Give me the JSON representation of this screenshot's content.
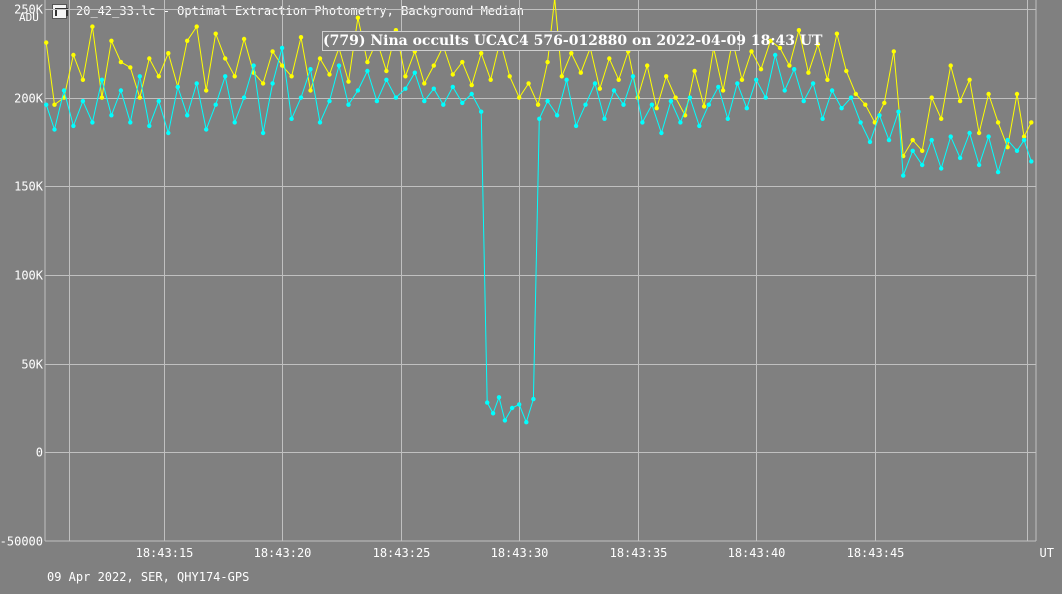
{
  "window": {
    "icon": "lc-file-icon",
    "title": "20_42_33.lc - Optimal Extraction Photometry, Background Median"
  },
  "footer": "09 Apr 2022, SER, QHY174-GPS",
  "colors": {
    "background": "#808080",
    "grid": "#c0c0c0",
    "series_yellow": "#ffff00",
    "series_cyan": "#00ffff"
  },
  "chart_data": {
    "type": "line",
    "title": "(779) Nina occults UCAC4 576-012880 on 2022-04-09 18:43 UT",
    "ylabel": "ADU",
    "xlabel": "UT",
    "ylim": [
      -50000,
      255000
    ],
    "xlim": [
      10.0,
      51.8
    ],
    "x_unit": "seconds after 18:43:00 UT",
    "grid": true,
    "yticks": [
      {
        "value": 250000,
        "label": "250K"
      },
      {
        "value": 200000,
        "label": "200K"
      },
      {
        "value": 150000,
        "label": "150K"
      },
      {
        "value": 100000,
        "label": "100K"
      },
      {
        "value": 50000,
        "label": "50K"
      },
      {
        "value": 0,
        "label": "0"
      },
      {
        "value": -50000,
        "label": "-50000"
      }
    ],
    "xticks": [
      {
        "value": 11,
        "label": ""
      },
      {
        "value": 15,
        "label": "18:43:15"
      },
      {
        "value": 20,
        "label": "18:43:20"
      },
      {
        "value": 25,
        "label": "18:43:25"
      },
      {
        "value": 30,
        "label": "18:43:30"
      },
      {
        "value": 35,
        "label": "18:43:35"
      },
      {
        "value": 40,
        "label": "18:43:40"
      },
      {
        "value": 45,
        "label": "18:43:45"
      },
      {
        "value": 51.4,
        "label": ""
      }
    ],
    "series": [
      {
        "color": "#ffff00",
        "points": [
          [
            10.05,
            231000
          ],
          [
            10.4,
            196000
          ],
          [
            10.8,
            200000
          ],
          [
            11.2,
            224000
          ],
          [
            11.6,
            210000
          ],
          [
            12.0,
            240000
          ],
          [
            12.4,
            200000
          ],
          [
            12.8,
            232000
          ],
          [
            13.2,
            220000
          ],
          [
            13.6,
            217000
          ],
          [
            14.0,
            200000
          ],
          [
            14.4,
            222000
          ],
          [
            14.8,
            212000
          ],
          [
            15.2,
            225000
          ],
          [
            15.6,
            206000
          ],
          [
            16.0,
            232000
          ],
          [
            16.4,
            240000
          ],
          [
            16.8,
            204000
          ],
          [
            17.2,
            236000
          ],
          [
            17.6,
            222000
          ],
          [
            18.0,
            212000
          ],
          [
            18.4,
            233000
          ],
          [
            18.8,
            214000
          ],
          [
            19.2,
            208000
          ],
          [
            19.6,
            226000
          ],
          [
            20.0,
            218000
          ],
          [
            20.4,
            212000
          ],
          [
            20.8,
            234000
          ],
          [
            21.2,
            204000
          ],
          [
            21.6,
            222000
          ],
          [
            22.0,
            213000
          ],
          [
            22.4,
            228000
          ],
          [
            22.8,
            209000
          ],
          [
            23.2,
            245000
          ],
          [
            23.6,
            220000
          ],
          [
            24.0,
            232000
          ],
          [
            24.4,
            215000
          ],
          [
            24.8,
            238000
          ],
          [
            25.2,
            212000
          ],
          [
            25.6,
            226000
          ],
          [
            26.0,
            208000
          ],
          [
            26.4,
            218000
          ],
          [
            26.8,
            229000
          ],
          [
            27.2,
            213000
          ],
          [
            27.6,
            220000
          ],
          [
            28.0,
            207000
          ],
          [
            28.4,
            225000
          ],
          [
            28.8,
            210000
          ],
          [
            29.2,
            232000
          ],
          [
            29.6,
            212000
          ],
          [
            30.0,
            200000
          ],
          [
            30.4,
            208000
          ],
          [
            30.8,
            196000
          ],
          [
            31.2,
            220000
          ],
          [
            31.5,
            256000
          ],
          [
            31.8,
            212000
          ],
          [
            32.2,
            225000
          ],
          [
            32.6,
            214000
          ],
          [
            33.0,
            228000
          ],
          [
            33.4,
            205000
          ],
          [
            33.8,
            222000
          ],
          [
            34.2,
            210000
          ],
          [
            34.6,
            226000
          ],
          [
            35.0,
            200000
          ],
          [
            35.4,
            218000
          ],
          [
            35.8,
            194000
          ],
          [
            36.2,
            212000
          ],
          [
            36.6,
            200000
          ],
          [
            37.0,
            190000
          ],
          [
            37.4,
            215000
          ],
          [
            37.8,
            195000
          ],
          [
            38.2,
            228000
          ],
          [
            38.6,
            204000
          ],
          [
            39.0,
            232000
          ],
          [
            39.4,
            210000
          ],
          [
            39.8,
            226000
          ],
          [
            40.2,
            216000
          ],
          [
            40.6,
            232000
          ],
          [
            41.0,
            228000
          ],
          [
            41.4,
            218000
          ],
          [
            41.8,
            238000
          ],
          [
            42.2,
            214000
          ],
          [
            42.6,
            230000
          ],
          [
            43.0,
            210000
          ],
          [
            43.4,
            236000
          ],
          [
            43.8,
            215000
          ],
          [
            44.2,
            202000
          ],
          [
            44.6,
            196000
          ],
          [
            45.0,
            186000
          ],
          [
            45.4,
            197000
          ],
          [
            45.8,
            226000
          ],
          [
            46.2,
            167000
          ],
          [
            46.6,
            176000
          ],
          [
            47.0,
            170000
          ],
          [
            47.4,
            200000
          ],
          [
            47.8,
            188000
          ],
          [
            48.2,
            218000
          ],
          [
            48.6,
            198000
          ],
          [
            49.0,
            210000
          ],
          [
            49.4,
            180000
          ],
          [
            49.8,
            202000
          ],
          [
            50.2,
            186000
          ],
          [
            50.6,
            172000
          ],
          [
            51.0,
            202000
          ],
          [
            51.3,
            178000
          ],
          [
            51.6,
            186000
          ]
        ]
      },
      {
        "color": "#00ffff",
        "points": [
          [
            10.05,
            196000
          ],
          [
            10.4,
            182000
          ],
          [
            10.8,
            204000
          ],
          [
            11.2,
            184000
          ],
          [
            11.6,
            198000
          ],
          [
            12.0,
            186000
          ],
          [
            12.4,
            210000
          ],
          [
            12.8,
            190000
          ],
          [
            13.2,
            204000
          ],
          [
            13.6,
            186000
          ],
          [
            14.0,
            212000
          ],
          [
            14.4,
            184000
          ],
          [
            14.8,
            198000
          ],
          [
            15.2,
            180000
          ],
          [
            15.6,
            206000
          ],
          [
            16.0,
            190000
          ],
          [
            16.4,
            208000
          ],
          [
            16.8,
            182000
          ],
          [
            17.2,
            196000
          ],
          [
            17.6,
            212000
          ],
          [
            18.0,
            186000
          ],
          [
            18.4,
            200000
          ],
          [
            18.8,
            218000
          ],
          [
            19.2,
            180000
          ],
          [
            19.6,
            208000
          ],
          [
            20.0,
            228000
          ],
          [
            20.4,
            188000
          ],
          [
            20.8,
            200000
          ],
          [
            21.2,
            216000
          ],
          [
            21.6,
            186000
          ],
          [
            22.0,
            198000
          ],
          [
            22.4,
            218000
          ],
          [
            22.8,
            196000
          ],
          [
            23.2,
            204000
          ],
          [
            23.6,
            215000
          ],
          [
            24.0,
            198000
          ],
          [
            24.4,
            210000
          ],
          [
            24.8,
            200000
          ],
          [
            25.2,
            205000
          ],
          [
            25.6,
            214000
          ],
          [
            26.0,
            198000
          ],
          [
            26.4,
            205000
          ],
          [
            26.8,
            196000
          ],
          [
            27.2,
            206000
          ],
          [
            27.6,
            197000
          ],
          [
            28.0,
            202000
          ],
          [
            28.4,
            192000
          ],
          [
            28.65,
            28000
          ],
          [
            28.9,
            22000
          ],
          [
            29.15,
            31000
          ],
          [
            29.4,
            18000
          ],
          [
            29.7,
            25000
          ],
          [
            30.0,
            27000
          ],
          [
            30.3,
            17000
          ],
          [
            30.6,
            30000
          ],
          [
            30.85,
            188000
          ],
          [
            31.2,
            198000
          ],
          [
            31.6,
            190000
          ],
          [
            32.0,
            210000
          ],
          [
            32.4,
            184000
          ],
          [
            32.8,
            196000
          ],
          [
            33.2,
            208000
          ],
          [
            33.6,
            188000
          ],
          [
            34.0,
            204000
          ],
          [
            34.4,
            196000
          ],
          [
            34.8,
            212000
          ],
          [
            35.2,
            186000
          ],
          [
            35.6,
            196000
          ],
          [
            36.0,
            180000
          ],
          [
            36.4,
            198000
          ],
          [
            36.8,
            186000
          ],
          [
            37.2,
            200000
          ],
          [
            37.6,
            184000
          ],
          [
            38.0,
            196000
          ],
          [
            38.4,
            206000
          ],
          [
            38.8,
            188000
          ],
          [
            39.2,
            208000
          ],
          [
            39.6,
            194000
          ],
          [
            40.0,
            210000
          ],
          [
            40.4,
            200000
          ],
          [
            40.8,
            224000
          ],
          [
            41.2,
            204000
          ],
          [
            41.6,
            216000
          ],
          [
            42.0,
            198000
          ],
          [
            42.4,
            208000
          ],
          [
            42.8,
            188000
          ],
          [
            43.2,
            204000
          ],
          [
            43.6,
            194000
          ],
          [
            44.0,
            200000
          ],
          [
            44.4,
            186000
          ],
          [
            44.8,
            175000
          ],
          [
            45.2,
            190000
          ],
          [
            45.6,
            176000
          ],
          [
            46.0,
            192000
          ],
          [
            46.2,
            156000
          ],
          [
            46.6,
            170000
          ],
          [
            47.0,
            162000
          ],
          [
            47.4,
            176000
          ],
          [
            47.8,
            160000
          ],
          [
            48.2,
            178000
          ],
          [
            48.6,
            166000
          ],
          [
            49.0,
            180000
          ],
          [
            49.4,
            162000
          ],
          [
            49.8,
            178000
          ],
          [
            50.2,
            158000
          ],
          [
            50.6,
            176000
          ],
          [
            51.0,
            170000
          ],
          [
            51.3,
            176000
          ],
          [
            51.6,
            164000
          ]
        ]
      }
    ]
  }
}
